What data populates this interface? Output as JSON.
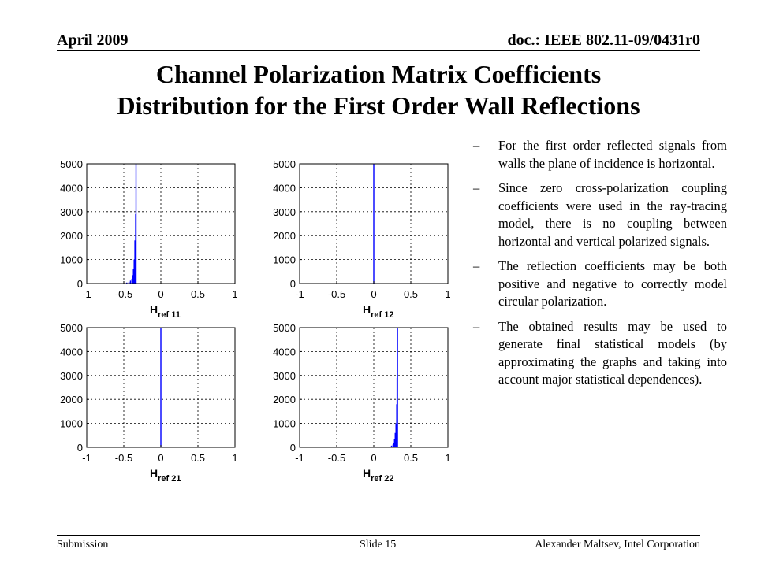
{
  "header": {
    "date": "April 2009",
    "doc": "doc.: IEEE 802.11-09/0431r0"
  },
  "title": {
    "line1": "Channel Polarization  Matrix Coefficients",
    "line2": "Distribution for the First Order Wall Reflections"
  },
  "bullets": [
    "For the first order reflected signals from walls the plane of incidence is horizontal.",
    "Since zero cross-polarization coupling coefficients were used in the ray-tracing model, there is no coupling between horizontal and vertical polarized signals.",
    "The reflection coefficients may be both positive and negative to correctly model circular polarization.",
    "The obtained results may be used to generate final statistical models (by approximating the graphs and taking into account major statistical dependences)."
  ],
  "chart_data": [
    {
      "type": "bar",
      "xlabel_main": "H",
      "xlabel_sub": "ref 11",
      "xlim": [
        -1,
        1
      ],
      "ylim": [
        0,
        5000
      ],
      "grid": true,
      "xticks": [
        -1,
        -0.5,
        0,
        0.5,
        1
      ],
      "yticks": [
        0,
        1000,
        2000,
        3000,
        4000,
        5000
      ],
      "xtick_labels": [
        "-1",
        "-0.5",
        "0",
        "0.5",
        "1"
      ],
      "ytick_labels": [
        "0",
        "1000",
        "2000",
        "3000",
        "4000",
        "5000"
      ],
      "x": [
        -0.55,
        -0.5,
        -0.46,
        -0.43,
        -0.41,
        -0.39,
        -0.38,
        -0.37,
        -0.36,
        -0.35,
        -0.34,
        -0.335
      ],
      "values": [
        10,
        20,
        40,
        70,
        120,
        200,
        350,
        600,
        1000,
        1800,
        2900,
        5000
      ]
    },
    {
      "type": "bar",
      "xlabel_main": "H",
      "xlabel_sub": "ref 12",
      "xlim": [
        -1,
        1
      ],
      "ylim": [
        0,
        5000
      ],
      "grid": true,
      "xticks": [
        -1,
        -0.5,
        0,
        0.5,
        1
      ],
      "yticks": [
        0,
        1000,
        2000,
        3000,
        4000,
        5000
      ],
      "xtick_labels": [
        "-1",
        "-0.5",
        "0",
        "0.5",
        "1"
      ],
      "ytick_labels": [
        "0",
        "1000",
        "2000",
        "3000",
        "4000",
        "5000"
      ],
      "x": [
        0
      ],
      "values": [
        5000
      ]
    },
    {
      "type": "bar",
      "xlabel_main": "H",
      "xlabel_sub": "ref 21",
      "xlim": [
        -1,
        1
      ],
      "ylim": [
        0,
        5000
      ],
      "grid": true,
      "xticks": [
        -1,
        -0.5,
        0,
        0.5,
        1
      ],
      "yticks": [
        0,
        1000,
        2000,
        3000,
        4000,
        5000
      ],
      "xtick_labels": [
        "-1",
        "-0.5",
        "0",
        "0.5",
        "1"
      ],
      "ytick_labels": [
        "0",
        "1000",
        "2000",
        "3000",
        "4000",
        "5000"
      ],
      "x": [
        0
      ],
      "values": [
        5000
      ]
    },
    {
      "type": "bar",
      "xlabel_main": "H",
      "xlabel_sub": "ref 22",
      "xlim": [
        -1,
        1
      ],
      "ylim": [
        0,
        5000
      ],
      "grid": true,
      "xticks": [
        -1,
        -0.5,
        0,
        0.5,
        1
      ],
      "yticks": [
        0,
        1000,
        2000,
        3000,
        4000,
        5000
      ],
      "xtick_labels": [
        "-1",
        "-0.5",
        "0",
        "0.5",
        "1"
      ],
      "ytick_labels": [
        "0",
        "1000",
        "2000",
        "3000",
        "4000",
        "5000"
      ],
      "x": [
        0.15,
        0.19,
        0.22,
        0.24,
        0.26,
        0.27,
        0.28,
        0.29,
        0.3,
        0.31,
        0.315,
        0.32
      ],
      "values": [
        10,
        20,
        40,
        70,
        120,
        200,
        350,
        600,
        1000,
        1800,
        2900,
        5000
      ]
    }
  ],
  "colors": {
    "bars": "#0000ff",
    "grid": "#000000",
    "axes": "#000000"
  },
  "footer": {
    "left": "Submission",
    "center": "Slide 15",
    "right": "Alexander Maltsev, Intel Corporation"
  }
}
